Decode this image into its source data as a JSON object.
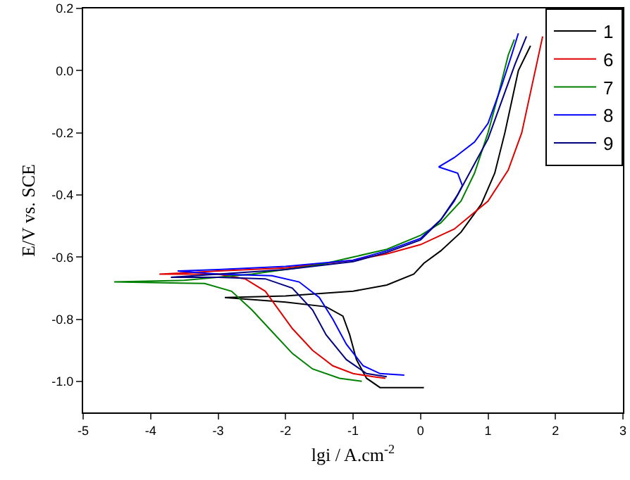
{
  "chart_data": {
    "type": "line",
    "xlabel": "lgi / A.cm$^{-2}$",
    "ylabel": "E/V vs. SCE",
    "xlim": [
      -5,
      3
    ],
    "xticks": [
      -5,
      -4,
      -3,
      -2,
      -1,
      0,
      1,
      2,
      3
    ],
    "ylim": [
      -1.1,
      0.2
    ],
    "yticks": [
      {
        "value": -1,
        "label": "-1.0"
      },
      -0.8,
      -0.6,
      -0.4,
      -0.2,
      {
        "value": 0,
        "label": "0.0"
      },
      0.2
    ],
    "grid": false,
    "legend": "top right",
    "marker": "none",
    "line_style": "solid",
    "series": [
      {
        "name": "1",
        "color": "#000000",
        "x": [
          0.05,
          -0.6,
          -0.8,
          -0.95,
          -1.05,
          -1.15,
          -1.4,
          -2.0,
          -2.9,
          -2.0,
          -1.0,
          -0.5,
          -0.1,
          0.05,
          0.3,
          0.6,
          0.9,
          1.1,
          1.25,
          1.35,
          1.45,
          1.63
        ],
        "values": [
          -1.02,
          -1.02,
          -0.99,
          -0.93,
          -0.85,
          -0.79,
          -0.76,
          -0.745,
          -0.73,
          -0.725,
          -0.71,
          -0.69,
          -0.655,
          -0.62,
          -0.58,
          -0.52,
          -0.43,
          -0.33,
          -0.2,
          -0.1,
          0.0,
          0.08
        ]
      },
      {
        "name": "6",
        "color": "#e00000",
        "x": [
          -0.52,
          -0.7,
          -1.0,
          -1.3,
          -1.6,
          -1.9,
          -2.1,
          -2.3,
          -2.6,
          -3.0,
          -3.87,
          -3.0,
          -2.0,
          -1.0,
          -0.5,
          0,
          0.5,
          1.0,
          1.3,
          1.5,
          1.65,
          1.81
        ],
        "values": [
          -0.99,
          -0.985,
          -0.975,
          -0.95,
          -0.9,
          -0.83,
          -0.77,
          -0.71,
          -0.67,
          -0.655,
          -0.655,
          -0.645,
          -0.635,
          -0.61,
          -0.59,
          -0.56,
          -0.51,
          -0.42,
          -0.32,
          -0.2,
          -0.05,
          0.11
        ]
      },
      {
        "name": "7",
        "color": "#008000",
        "x": [
          -0.87,
          -1.2,
          -1.6,
          -1.9,
          -2.2,
          -2.5,
          -2.8,
          -3.2,
          -4.54,
          -3.5,
          -2.5,
          -1.5,
          -1.0,
          -0.5,
          0,
          0.3,
          0.6,
          0.8,
          1.0,
          1.15,
          1.3,
          1.39
        ],
        "values": [
          -1.0,
          -0.99,
          -0.96,
          -0.91,
          -0.84,
          -0.77,
          -0.71,
          -0.685,
          -0.68,
          -0.675,
          -0.655,
          -0.625,
          -0.6,
          -0.575,
          -0.53,
          -0.49,
          -0.42,
          -0.33,
          -0.2,
          -0.08,
          0.05,
          0.1
        ]
      },
      {
        "name": "8",
        "color": "#0000ff",
        "x": [
          -0.24,
          -0.6,
          -0.85,
          -1.1,
          -1.3,
          -1.5,
          -1.8,
          -2.2,
          -3.0,
          -3.6,
          -3.0,
          -2.0,
          -1.0,
          -0.5,
          0,
          0.3,
          0.5,
          0.62,
          0.55,
          0.27,
          0.5,
          0.8,
          1.0,
          1.2,
          1.35,
          1.45
        ],
        "values": [
          -0.98,
          -0.975,
          -0.95,
          -0.88,
          -0.8,
          -0.73,
          -0.68,
          -0.66,
          -0.655,
          -0.645,
          -0.64,
          -0.63,
          -0.61,
          -0.58,
          -0.54,
          -0.48,
          -0.42,
          -0.37,
          -0.33,
          -0.31,
          -0.28,
          -0.23,
          -0.17,
          -0.05,
          0.05,
          0.12
        ]
      },
      {
        "name": "9",
        "color": "#000080",
        "x": [
          -0.5,
          -0.8,
          -1.1,
          -1.4,
          -1.6,
          -1.9,
          -2.3,
          -3.0,
          -3.7,
          -3.0,
          -2.0,
          -1.0,
          -0.5,
          0,
          0.3,
          0.55,
          0.8,
          1.0,
          1.2,
          1.4,
          1.57
        ],
        "values": [
          -0.985,
          -0.975,
          -0.93,
          -0.85,
          -0.77,
          -0.7,
          -0.67,
          -0.665,
          -0.665,
          -0.655,
          -0.64,
          -0.615,
          -0.585,
          -0.545,
          -0.48,
          -0.4,
          -0.3,
          -0.22,
          -0.1,
          0.02,
          0.11
        ]
      }
    ]
  }
}
